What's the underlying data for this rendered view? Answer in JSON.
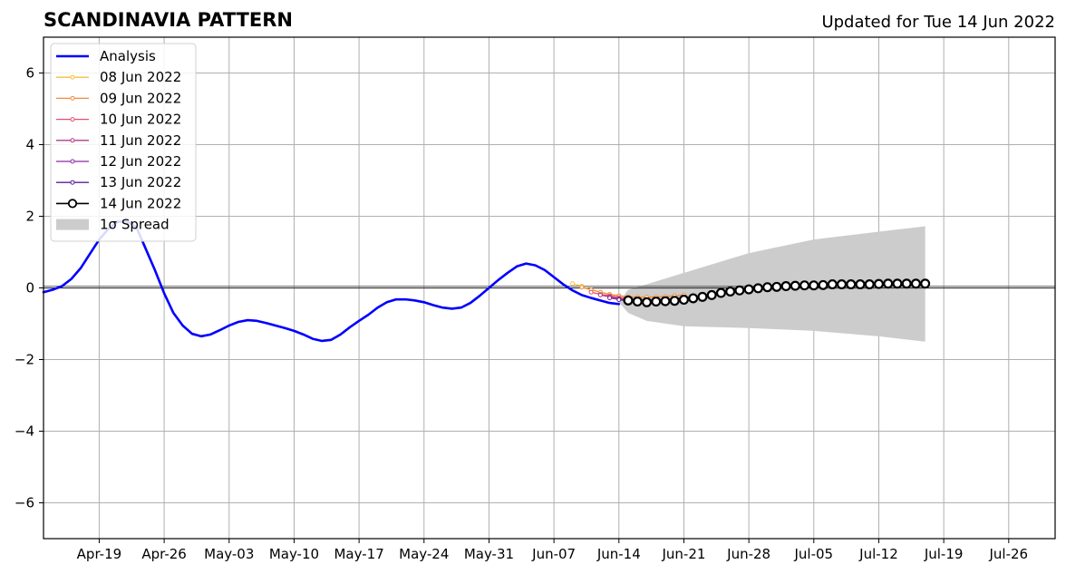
{
  "chart_data": {
    "type": "line",
    "title": "SCANDINAVIA PATTERN",
    "subtitle": "Updated for Tue 14 Jun 2022",
    "xlabel": "",
    "ylabel": "",
    "xlim": [
      "2022-04-13",
      "2022-07-31"
    ],
    "ylim": [
      -7,
      7
    ],
    "grid": true,
    "legend_position": "top-left",
    "x_ticks": [
      {
        "date": "2022-04-19",
        "label": "Apr-19"
      },
      {
        "date": "2022-04-26",
        "label": "Apr-26"
      },
      {
        "date": "2022-05-03",
        "label": "May-03"
      },
      {
        "date": "2022-05-10",
        "label": "May-10"
      },
      {
        "date": "2022-05-17",
        "label": "May-17"
      },
      {
        "date": "2022-05-24",
        "label": "May-24"
      },
      {
        "date": "2022-05-31",
        "label": "May-31"
      },
      {
        "date": "2022-06-07",
        "label": "Jun-07"
      },
      {
        "date": "2022-06-14",
        "label": "Jun-14"
      },
      {
        "date": "2022-06-21",
        "label": "Jun-21"
      },
      {
        "date": "2022-06-28",
        "label": "Jun-28"
      },
      {
        "date": "2022-07-05",
        "label": "Jul-05"
      },
      {
        "date": "2022-07-12",
        "label": "Jul-12"
      },
      {
        "date": "2022-07-19",
        "label": "Jul-19"
      },
      {
        "date": "2022-07-26",
        "label": "Jul-26"
      }
    ],
    "y_ticks": [
      {
        "value": 6,
        "label": "6"
      },
      {
        "value": 4,
        "label": "4"
      },
      {
        "value": 2,
        "label": "2"
      },
      {
        "value": 0,
        "label": "0"
      },
      {
        "value": -2,
        "label": "−2"
      },
      {
        "value": -4,
        "label": "−4"
      },
      {
        "value": -6,
        "label": "−6"
      }
    ],
    "analysis": {
      "name": "Analysis",
      "color": "#0000ff",
      "points": [
        [
          "2022-04-13",
          -0.12
        ],
        [
          "2022-04-14",
          -0.05
        ],
        [
          "2022-04-15",
          0.05
        ],
        [
          "2022-04-16",
          0.25
        ],
        [
          "2022-04-17",
          0.55
        ],
        [
          "2022-04-18",
          0.95
        ],
        [
          "2022-04-19",
          1.35
        ],
        [
          "2022-04-20",
          1.65
        ],
        [
          "2022-04-21",
          1.85
        ],
        [
          "2022-04-22",
          1.85
        ],
        [
          "2022-04-23",
          1.7
        ],
        [
          "2022-04-24",
          1.1
        ],
        [
          "2022-04-25",
          0.5
        ],
        [
          "2022-04-26",
          -0.15
        ],
        [
          "2022-04-27",
          -0.7
        ],
        [
          "2022-04-28",
          -1.05
        ],
        [
          "2022-04-29",
          -1.28
        ],
        [
          "2022-04-30",
          -1.35
        ],
        [
          "2022-05-01",
          -1.3
        ],
        [
          "2022-05-02",
          -1.18
        ],
        [
          "2022-05-03",
          -1.05
        ],
        [
          "2022-05-04",
          -0.95
        ],
        [
          "2022-05-05",
          -0.9
        ],
        [
          "2022-05-06",
          -0.92
        ],
        [
          "2022-05-07",
          -0.98
        ],
        [
          "2022-05-08",
          -1.05
        ],
        [
          "2022-05-09",
          -1.12
        ],
        [
          "2022-05-10",
          -1.2
        ],
        [
          "2022-05-11",
          -1.3
        ],
        [
          "2022-05-12",
          -1.42
        ],
        [
          "2022-05-13",
          -1.48
        ],
        [
          "2022-05-14",
          -1.45
        ],
        [
          "2022-05-15",
          -1.3
        ],
        [
          "2022-05-16",
          -1.1
        ],
        [
          "2022-05-17",
          -0.92
        ],
        [
          "2022-05-18",
          -0.75
        ],
        [
          "2022-05-19",
          -0.55
        ],
        [
          "2022-05-20",
          -0.4
        ],
        [
          "2022-05-21",
          -0.32
        ],
        [
          "2022-05-22",
          -0.32
        ],
        [
          "2022-05-23",
          -0.35
        ],
        [
          "2022-05-24",
          -0.4
        ],
        [
          "2022-05-25",
          -0.48
        ],
        [
          "2022-05-26",
          -0.55
        ],
        [
          "2022-05-27",
          -0.58
        ],
        [
          "2022-05-28",
          -0.55
        ],
        [
          "2022-05-29",
          -0.42
        ],
        [
          "2022-05-30",
          -0.22
        ],
        [
          "2022-05-31",
          0.0
        ],
        [
          "2022-06-01",
          0.22
        ],
        [
          "2022-06-02",
          0.42
        ],
        [
          "2022-06-03",
          0.6
        ],
        [
          "2022-06-04",
          0.68
        ],
        [
          "2022-06-05",
          0.63
        ],
        [
          "2022-06-06",
          0.5
        ],
        [
          "2022-06-07",
          0.3
        ],
        [
          "2022-06-08",
          0.1
        ],
        [
          "2022-06-09",
          -0.07
        ],
        [
          "2022-06-10",
          -0.2
        ],
        [
          "2022-06-11",
          -0.28
        ],
        [
          "2022-06-12",
          -0.35
        ],
        [
          "2022-06-13",
          -0.42
        ],
        [
          "2022-06-14",
          -0.45
        ]
      ]
    },
    "forecasts": [
      {
        "name": "08 Jun 2022",
        "color": "#f5c040",
        "points": [
          [
            "2022-06-09",
            0.12
          ],
          [
            "2022-06-10",
            0.05
          ],
          [
            "2022-06-11",
            -0.05
          ],
          [
            "2022-06-12",
            -0.12
          ],
          [
            "2022-06-13",
            -0.18
          ],
          [
            "2022-06-14",
            -0.22
          ],
          [
            "2022-06-15",
            -0.25
          ],
          [
            "2022-06-16",
            -0.25
          ],
          [
            "2022-06-17",
            -0.25
          ],
          [
            "2022-06-18",
            -0.25
          ],
          [
            "2022-06-19",
            -0.24
          ],
          [
            "2022-06-20",
            -0.22
          ]
        ]
      },
      {
        "name": "09 Jun 2022",
        "color": "#f08c3c",
        "points": [
          [
            "2022-06-10",
            0.02
          ],
          [
            "2022-06-11",
            -0.05
          ],
          [
            "2022-06-12",
            -0.12
          ],
          [
            "2022-06-13",
            -0.18
          ],
          [
            "2022-06-14",
            -0.22
          ],
          [
            "2022-06-15",
            -0.25
          ],
          [
            "2022-06-16",
            -0.26
          ],
          [
            "2022-06-17",
            -0.26
          ],
          [
            "2022-06-18",
            -0.25
          ],
          [
            "2022-06-19",
            -0.24
          ],
          [
            "2022-06-20",
            -0.22
          ],
          [
            "2022-06-21",
            -0.2
          ]
        ]
      },
      {
        "name": "10 Jun 2022",
        "color": "#e0506e",
        "points": [
          [
            "2022-06-11",
            -0.12
          ],
          [
            "2022-06-12",
            -0.18
          ],
          [
            "2022-06-13",
            -0.22
          ],
          [
            "2022-06-14",
            -0.27
          ],
          [
            "2022-06-15",
            -0.3
          ],
          [
            "2022-06-16",
            -0.32
          ],
          [
            "2022-06-17",
            -0.33
          ],
          [
            "2022-06-18",
            -0.33
          ],
          [
            "2022-06-19",
            -0.32
          ],
          [
            "2022-06-20",
            -0.3
          ],
          [
            "2022-06-21",
            -0.27
          ],
          [
            "2022-06-22",
            -0.24
          ],
          [
            "2022-07-07",
            0.15
          ],
          [
            "2022-07-08",
            0.15
          ],
          [
            "2022-07-09",
            0.15
          ],
          [
            "2022-07-10",
            0.15
          ],
          [
            "2022-07-11",
            0.15
          ]
        ]
      },
      {
        "name": "11 Jun 2022",
        "color": "#b03c8c",
        "points": [
          [
            "2022-06-12",
            -0.2
          ],
          [
            "2022-06-13",
            -0.25
          ],
          [
            "2022-06-14",
            -0.3
          ],
          [
            "2022-06-15",
            -0.33
          ],
          [
            "2022-06-16",
            -0.35
          ],
          [
            "2022-06-17",
            -0.36
          ],
          [
            "2022-06-18",
            -0.36
          ],
          [
            "2022-06-19",
            -0.35
          ],
          [
            "2022-06-20",
            -0.33
          ],
          [
            "2022-06-21",
            -0.3
          ],
          [
            "2022-06-22",
            -0.27
          ],
          [
            "2022-06-23",
            -0.24
          ],
          [
            "2022-06-24",
            -0.2
          ],
          [
            "2022-06-25",
            -0.17
          ],
          [
            "2022-06-26",
            -0.14
          ],
          [
            "2022-06-27",
            -0.11
          ]
        ]
      },
      {
        "name": "12 Jun 2022",
        "color": "#8c28a0",
        "points": [
          [
            "2022-06-13",
            -0.28
          ],
          [
            "2022-06-14",
            -0.32
          ],
          [
            "2022-06-15",
            -0.35
          ],
          [
            "2022-06-16",
            -0.37
          ],
          [
            "2022-06-17",
            -0.38
          ],
          [
            "2022-06-18",
            -0.38
          ],
          [
            "2022-06-19",
            -0.36
          ],
          [
            "2022-06-20",
            -0.33
          ],
          [
            "2022-06-21",
            -0.3
          ],
          [
            "2022-06-22",
            -0.27
          ],
          [
            "2022-06-23",
            -0.23
          ],
          [
            "2022-06-24",
            -0.2
          ],
          [
            "2022-06-25",
            -0.16
          ],
          [
            "2022-06-26",
            -0.13
          ]
        ]
      },
      {
        "name": "13 Jun 2022",
        "color": "#5a1e96",
        "points": [
          [
            "2022-06-14",
            -0.33
          ],
          [
            "2022-06-15",
            -0.36
          ],
          [
            "2022-06-16",
            -0.38
          ],
          [
            "2022-06-17",
            -0.39
          ],
          [
            "2022-06-18",
            -0.38
          ],
          [
            "2022-06-19",
            -0.36
          ],
          [
            "2022-06-20",
            -0.33
          ],
          [
            "2022-06-21",
            -0.3
          ],
          [
            "2022-06-22",
            -0.26
          ],
          [
            "2022-06-23",
            -0.22
          ],
          [
            "2022-06-24",
            -0.18
          ]
        ]
      }
    ],
    "current_forecast": {
      "name": "14 Jun 2022",
      "color": "#000000",
      "points": [
        [
          "2022-06-15",
          -0.35
        ],
        [
          "2022-06-16",
          -0.38
        ],
        [
          "2022-06-17",
          -0.4
        ],
        [
          "2022-06-18",
          -0.38
        ],
        [
          "2022-06-19",
          -0.37
        ],
        [
          "2022-06-20",
          -0.36
        ],
        [
          "2022-06-21",
          -0.33
        ],
        [
          "2022-06-22",
          -0.29
        ],
        [
          "2022-06-23",
          -0.25
        ],
        [
          "2022-06-24",
          -0.2
        ],
        [
          "2022-06-25",
          -0.14
        ],
        [
          "2022-06-26",
          -0.1
        ],
        [
          "2022-06-27",
          -0.07
        ],
        [
          "2022-06-28",
          -0.04
        ],
        [
          "2022-06-29",
          -0.01
        ],
        [
          "2022-06-30",
          0.02
        ],
        [
          "2022-07-01",
          0.03
        ],
        [
          "2022-07-02",
          0.05
        ],
        [
          "2022-07-03",
          0.06
        ],
        [
          "2022-07-04",
          0.07
        ],
        [
          "2022-07-05",
          0.07
        ],
        [
          "2022-07-06",
          0.08
        ],
        [
          "2022-07-07",
          0.1
        ],
        [
          "2022-07-08",
          0.1
        ],
        [
          "2022-07-09",
          0.1
        ],
        [
          "2022-07-10",
          0.1
        ],
        [
          "2022-07-11",
          0.1
        ],
        [
          "2022-07-12",
          0.11
        ],
        [
          "2022-07-13",
          0.12
        ],
        [
          "2022-07-14",
          0.12
        ],
        [
          "2022-07-15",
          0.12
        ],
        [
          "2022-07-16",
          0.12
        ],
        [
          "2022-07-17",
          0.12
        ]
      ]
    },
    "spread": {
      "name": "1σ Spread",
      "color": "#cccccc",
      "upper": [
        [
          "2022-06-14",
          -0.4
        ],
        [
          "2022-06-15",
          -0.05
        ],
        [
          "2022-06-17",
          0.1
        ],
        [
          "2022-06-21",
          0.42
        ],
        [
          "2022-06-28",
          0.97
        ],
        [
          "2022-07-05",
          1.35
        ],
        [
          "2022-07-12",
          1.57
        ],
        [
          "2022-07-17",
          1.72
        ]
      ],
      "lower": [
        [
          "2022-06-14",
          -0.4
        ],
        [
          "2022-06-15",
          -0.7
        ],
        [
          "2022-06-17",
          -0.92
        ],
        [
          "2022-06-21",
          -1.07
        ],
        [
          "2022-06-28",
          -1.12
        ],
        [
          "2022-07-05",
          -1.2
        ],
        [
          "2022-07-12",
          -1.35
        ],
        [
          "2022-07-17",
          -1.5
        ]
      ]
    }
  }
}
